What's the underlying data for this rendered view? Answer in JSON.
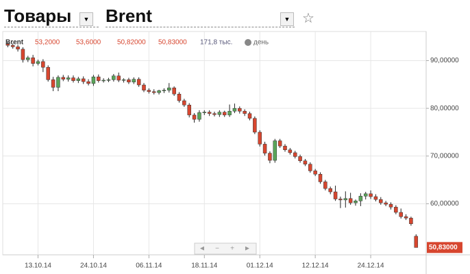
{
  "header": {
    "section": "Товары",
    "instrument": "Brent"
  },
  "chart_data": {
    "type": "candlestick",
    "legend": {
      "symbol": "Brent",
      "open": "53,2000",
      "high": "53,6000",
      "low": "50,82000",
      "close": "50,83000",
      "volume": "171,8 тыс.",
      "interval": "день"
    },
    "open": [
      93.6,
      93.2,
      92.9,
      92.4,
      90.2,
      90.6,
      89.4,
      89.8,
      88.6,
      86.0,
      84.4,
      86.5,
      86.1,
      86.4,
      85.8,
      86.2,
      85.6,
      85.2,
      86.6,
      85.8,
      85.9,
      86.0,
      86.8,
      85.9,
      86.0,
      85.5,
      86.1,
      84.9,
      83.8,
      83.5,
      83.3,
      83.7,
      83.8,
      84.3,
      83.0,
      81.6,
      80.7,
      78.6,
      77.7,
      79.1,
      79.2,
      78.9,
      78.7,
      79.2,
      78.6,
      79.4,
      80.0,
      79.4,
      78.9,
      77.9,
      75.0,
      72.5,
      70.6,
      69.1,
      73.2,
      72.1,
      71.3,
      70.7,
      69.9,
      69.0,
      68.3,
      66.9,
      66.2,
      64.6,
      63.2,
      62.5,
      61.0,
      60.8,
      61.1,
      60.2,
      60.6,
      61.6,
      62.1,
      61.5,
      60.9,
      60.2,
      59.9,
      59.3,
      58.2,
      57.3,
      57.0,
      53.2
    ],
    "high": [
      94.0,
      93.6,
      93.3,
      92.8,
      91.0,
      91.2,
      90.2,
      90.3,
      89.0,
      86.6,
      86.9,
      87.0,
      86.9,
      86.9,
      86.6,
      86.7,
      86.1,
      87.0,
      87.1,
      86.3,
      86.4,
      87.2,
      87.5,
      86.3,
      86.4,
      86.5,
      86.5,
      85.3,
      84.2,
      84.0,
      83.9,
      84.2,
      85.3,
      84.6,
      83.4,
      82.0,
      81.1,
      79.0,
      79.6,
      79.6,
      79.6,
      79.3,
      79.6,
      79.5,
      80.8,
      81.0,
      80.4,
      79.8,
      79.3,
      78.3,
      75.4,
      73.0,
      71.0,
      73.6,
      73.6,
      72.5,
      71.7,
      71.1,
      70.3,
      69.4,
      68.7,
      67.3,
      66.6,
      65.0,
      63.6,
      63.8,
      61.5,
      62.6,
      62.3,
      60.9,
      62.2,
      62.5,
      62.8,
      62.0,
      61.4,
      60.6,
      60.3,
      59.7,
      59.0,
      57.8,
      57.3,
      53.6
    ],
    "low": [
      92.8,
      92.5,
      91.9,
      89.6,
      89.7,
      88.8,
      89.0,
      87.6,
      85.6,
      83.6,
      83.6,
      85.7,
      85.6,
      85.4,
      85.3,
      85.1,
      84.8,
      84.7,
      85.4,
      85.4,
      85.5,
      85.6,
      85.5,
      85.4,
      85.1,
      85.1,
      84.5,
      83.4,
      83.1,
      82.9,
      82.9,
      83.2,
      83.3,
      82.6,
      81.2,
      80.3,
      78.1,
      77.0,
      77.2,
      78.6,
      78.4,
      78.3,
      78.2,
      78.2,
      78.2,
      79.0,
      78.9,
      78.4,
      77.5,
      74.6,
      72.0,
      70.1,
      68.5,
      68.6,
      71.7,
      70.9,
      70.3,
      69.5,
      68.6,
      67.9,
      66.5,
      65.8,
      64.2,
      62.8,
      62.0,
      60.6,
      59.1,
      59.2,
      59.8,
      59.6,
      59.5,
      60.9,
      61.0,
      60.5,
      59.8,
      59.5,
      58.8,
      57.8,
      56.9,
      56.6,
      55.4,
      50.82
    ],
    "close": [
      93.2,
      92.9,
      92.4,
      90.2,
      90.6,
      89.4,
      89.8,
      88.6,
      86.0,
      84.4,
      86.5,
      86.1,
      86.4,
      85.8,
      86.2,
      85.6,
      85.2,
      86.6,
      85.8,
      85.9,
      86.0,
      86.8,
      85.9,
      86.0,
      85.5,
      86.1,
      84.9,
      83.8,
      83.5,
      83.3,
      83.7,
      83.8,
      84.3,
      83.0,
      81.6,
      80.7,
      78.6,
      77.7,
      79.1,
      79.2,
      78.9,
      78.7,
      79.2,
      78.6,
      79.4,
      80.0,
      79.4,
      78.9,
      77.9,
      75.0,
      72.5,
      70.6,
      69.1,
      73.2,
      72.1,
      71.3,
      70.7,
      69.9,
      69.0,
      68.3,
      66.9,
      66.2,
      64.6,
      63.2,
      62.5,
      61.0,
      60.8,
      61.1,
      60.2,
      60.6,
      61.6,
      62.1,
      61.5,
      60.9,
      60.2,
      59.9,
      59.3,
      58.2,
      57.3,
      57.0,
      55.8,
      50.83
    ],
    "colors": {
      "up": "#5aa55a",
      "down": "#d7462f"
    },
    "last_price": {
      "value": 50.83,
      "label": "50,83000"
    },
    "xlim": [
      -1,
      83
    ],
    "xticks": [
      {
        "value": 6,
        "label": "13.10.14"
      },
      {
        "value": 17,
        "label": "24.10.14"
      },
      {
        "value": 28,
        "label": "06.11.14"
      },
      {
        "value": 39,
        "label": "18.11.14"
      },
      {
        "value": 50,
        "label": "01.12.14"
      },
      {
        "value": 61,
        "label": "12.12.14"
      },
      {
        "value": 72,
        "label": "24.12.14"
      }
    ],
    "ylim": [
      49.3,
      96.1
    ],
    "yticks": [
      {
        "value": 60,
        "label": "60,00000"
      },
      {
        "value": 70,
        "label": "70,00000"
      },
      {
        "value": 80,
        "label": "80,00000"
      },
      {
        "value": 90,
        "label": "90,00000"
      }
    ],
    "grid": true
  }
}
